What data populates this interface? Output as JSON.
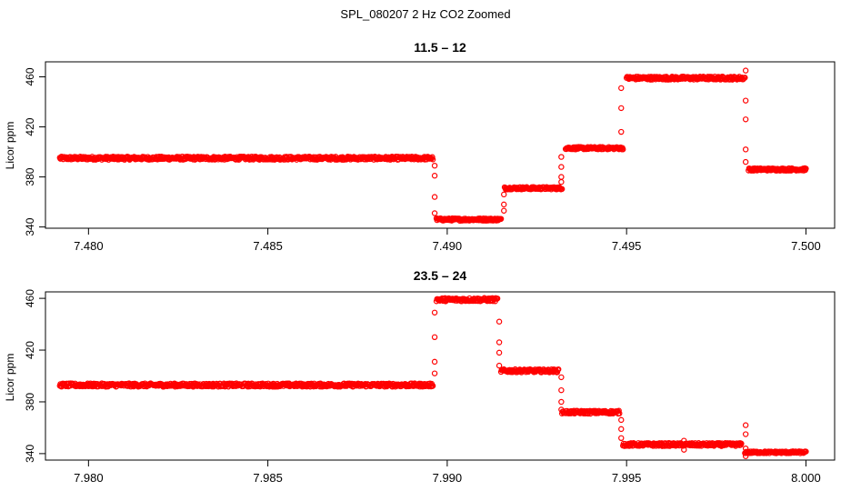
{
  "figure": {
    "title": "SPL_080207  2 Hz CO2 Zoomed"
  },
  "colors": {
    "points": "#ff0000",
    "axis": "#000000",
    "background": "#ffffff"
  },
  "chart_data": [
    {
      "type": "scatter",
      "title": "11.5 – 12",
      "xlabel": "",
      "ylabel": "Licor ppm",
      "xlim": [
        7.4788,
        7.5008
      ],
      "ylim": [
        339,
        472
      ],
      "xticks": [
        7.48,
        7.485,
        7.49,
        7.495,
        7.5
      ],
      "xtick_labels": [
        "7.480",
        "7.485",
        "7.490",
        "7.495",
        "7.500"
      ],
      "yticks": [
        340,
        380,
        420,
        460
      ],
      "ytick_labels": [
        "340",
        "380",
        "420",
        "460"
      ],
      "grid": false,
      "segments": [
        {
          "x": [
            7.4792,
            7.4896
          ],
          "y": 395,
          "jitter": 1.3
        },
        {
          "x": [
            7.4897,
            7.4915
          ],
          "y": 346,
          "jitter": 1.0
        },
        {
          "x": [
            7.4916,
            7.4932
          ],
          "y": 371,
          "jitter": 1.0
        },
        {
          "x": [
            7.4933,
            7.4949
          ],
          "y": 403,
          "jitter": 1.0
        },
        {
          "x": [
            7.495,
            7.4983
          ],
          "y": 459,
          "jitter": 1.3
        },
        {
          "x": [
            7.4984,
            7.5
          ],
          "y": 386,
          "jitter": 1.0
        }
      ],
      "transitions": [
        {
          "x": 7.48965,
          "y": [
            389,
            381,
            364,
            351
          ]
        },
        {
          "x": 7.49158,
          "y": [
            353,
            358,
            366
          ]
        },
        {
          "x": 7.49318,
          "y": [
            376,
            380,
            388,
            396
          ]
        },
        {
          "x": 7.49485,
          "y": [
            416,
            435,
            451
          ]
        },
        {
          "x": 7.49832,
          "y": [
            465,
            441,
            426,
            402,
            392
          ]
        }
      ]
    },
    {
      "type": "scatter",
      "title": "23.5 – 24",
      "xlabel": "",
      "ylabel": "Licor ppm",
      "xlim": [
        7.9788,
        8.0008
      ],
      "ylim": [
        335,
        465
      ],
      "xticks": [
        7.98,
        7.985,
        7.99,
        7.995,
        8.0
      ],
      "xtick_labels": [
        "7.980",
        "7.985",
        "7.990",
        "7.995",
        "8.000"
      ],
      "yticks": [
        340,
        380,
        420,
        460
      ],
      "ytick_labels": [
        "340",
        "380",
        "420",
        "460"
      ],
      "grid": false,
      "segments": [
        {
          "x": [
            7.9792,
            7.9896
          ],
          "y": 393,
          "jitter": 1.3
        },
        {
          "x": [
            7.9897,
            7.9914
          ],
          "y": 459,
          "jitter": 1.3
        },
        {
          "x": [
            7.9915,
            7.9931
          ],
          "y": 404,
          "jitter": 1.2
        },
        {
          "x": [
            7.9932,
            7.9948
          ],
          "y": 372,
          "jitter": 1.2
        },
        {
          "x": [
            7.9949,
            7.9982
          ],
          "y": 347,
          "jitter": 1.2
        },
        {
          "x": [
            7.9983,
            8.0
          ],
          "y": 341,
          "jitter": 0.8
        }
      ],
      "transitions": [
        {
          "x": 7.98965,
          "y": [
            402,
            411,
            430,
            449
          ]
        },
        {
          "x": 7.99145,
          "y": [
            442,
            426,
            418,
            408
          ]
        },
        {
          "x": 7.99318,
          "y": [
            399,
            389,
            380,
            374
          ]
        },
        {
          "x": 7.99485,
          "y": [
            366,
            359,
            352
          ]
        },
        {
          "x": 7.99832,
          "y": [
            362,
            355,
            344,
            338
          ]
        },
        {
          "x": 7.9966,
          "y": [
            343,
            350
          ]
        }
      ]
    }
  ]
}
